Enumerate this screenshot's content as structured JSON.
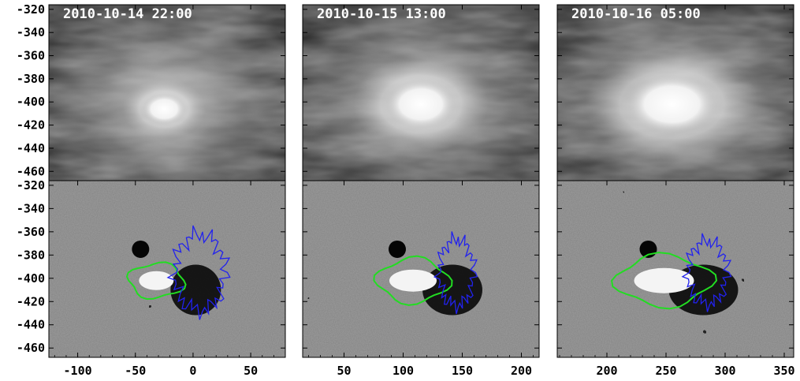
{
  "figure": {
    "panels": [
      {
        "timestamp": "2010-10-14 22:00",
        "x_ticks": [
          "-100",
          "-50",
          "0",
          "50"
        ],
        "x_tick_values": [
          -100,
          -50,
          0,
          50
        ],
        "x_range": [
          -125,
          80
        ],
        "flare_x": -25
      },
      {
        "timestamp": "2010-10-15 13:00",
        "x_ticks": [
          "50",
          "100",
          "150",
          "200"
        ],
        "x_tick_values": [
          50,
          100,
          150,
          200
        ],
        "x_range": [
          15,
          215
        ],
        "flare_x": 115
      },
      {
        "timestamp": "2010-10-16 05:00",
        "x_ticks": [
          "200",
          "250",
          "300",
          "350"
        ],
        "x_tick_values": [
          200,
          250,
          300,
          350
        ],
        "x_range": [
          158,
          358
        ],
        "flare_x": 255
      }
    ],
    "y_ticks_top": [
      "-320",
      "-340",
      "-360",
      "-380",
      "-400",
      "-420",
      "-440",
      "-460"
    ],
    "y_ticks_bottom": [
      "-320",
      "-340",
      "-360",
      "-380",
      "-400",
      "-420",
      "-440",
      "-460"
    ],
    "y_tick_values": [
      -320,
      -340,
      -360,
      -380,
      -400,
      -420,
      -440,
      -460
    ],
    "y_range": [
      -316,
      -468
    ],
    "contour_colors": {
      "positive": "#22dd22",
      "negative": "#2222ee"
    },
    "colors": {
      "euv_bg": "#3a3a3a",
      "mag_bg": "#8a8a8a"
    }
  }
}
